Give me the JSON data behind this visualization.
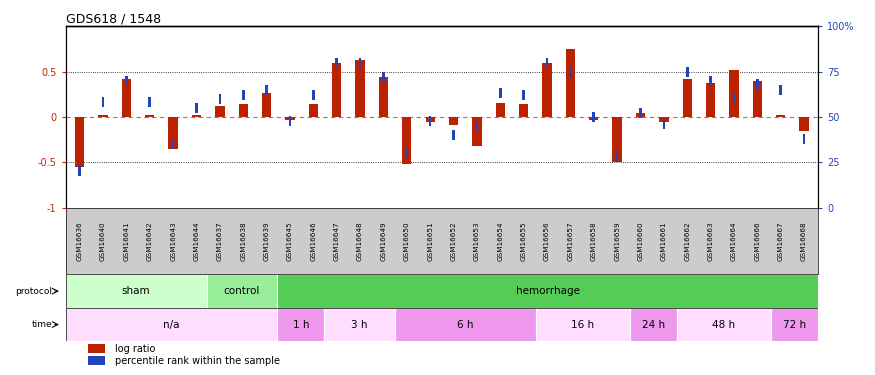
{
  "title": "GDS618 / 1548",
  "samples": [
    "GSM16636",
    "GSM16640",
    "GSM16641",
    "GSM16642",
    "GSM16643",
    "GSM16644",
    "GSM16637",
    "GSM16638",
    "GSM16639",
    "GSM16645",
    "GSM16646",
    "GSM16647",
    "GSM16648",
    "GSM16649",
    "GSM16650",
    "GSM16651",
    "GSM16652",
    "GSM16653",
    "GSM16654",
    "GSM16655",
    "GSM16656",
    "GSM16657",
    "GSM16658",
    "GSM16659",
    "GSM16660",
    "GSM16661",
    "GSM16662",
    "GSM16663",
    "GSM16664",
    "GSM16666",
    "GSM16667",
    "GSM16668"
  ],
  "log_ratio": [
    -0.55,
    0.02,
    0.42,
    0.02,
    -0.35,
    0.02,
    0.12,
    0.14,
    0.26,
    -0.03,
    0.14,
    0.6,
    0.63,
    0.44,
    -0.52,
    -0.06,
    -0.09,
    -0.32,
    0.15,
    0.14,
    0.6,
    0.75,
    -0.03,
    -0.5,
    0.04,
    -0.06,
    0.42,
    0.37,
    0.52,
    0.4,
    0.02,
    -0.15
  ],
  "percentile": [
    20,
    58,
    70,
    58,
    35,
    55,
    60,
    62,
    65,
    48,
    62,
    80,
    80,
    72,
    30,
    48,
    40,
    45,
    63,
    62,
    80,
    75,
    50,
    28,
    52,
    46,
    75,
    70,
    60,
    68,
    65,
    38
  ],
  "protocol_groups": [
    {
      "label": "sham",
      "start": 0,
      "end": 6,
      "color": "#ccffcc"
    },
    {
      "label": "control",
      "start": 6,
      "end": 9,
      "color": "#99ee99"
    },
    {
      "label": "hemorrhage",
      "start": 9,
      "end": 32,
      "color": "#55cc55"
    }
  ],
  "time_groups": [
    {
      "label": "n/a",
      "start": 0,
      "end": 9,
      "color": "#ffddff"
    },
    {
      "label": "1 h",
      "start": 9,
      "end": 11,
      "color": "#ee99ee"
    },
    {
      "label": "3 h",
      "start": 11,
      "end": 14,
      "color": "#ffddff"
    },
    {
      "label": "6 h",
      "start": 14,
      "end": 20,
      "color": "#ee99ee"
    },
    {
      "label": "16 h",
      "start": 20,
      "end": 24,
      "color": "#ffddff"
    },
    {
      "label": "24 h",
      "start": 24,
      "end": 26,
      "color": "#ee99ee"
    },
    {
      "label": "48 h",
      "start": 26,
      "end": 30,
      "color": "#ffddff"
    },
    {
      "label": "72 h",
      "start": 30,
      "end": 32,
      "color": "#ee99ee"
    }
  ],
  "bar_color": "#bb2200",
  "blue_color": "#2244bb",
  "zero_line_color": "#cc3333",
  "sample_bg_color": "#cccccc",
  "ylim_min": -1,
  "ylim_max": 1
}
